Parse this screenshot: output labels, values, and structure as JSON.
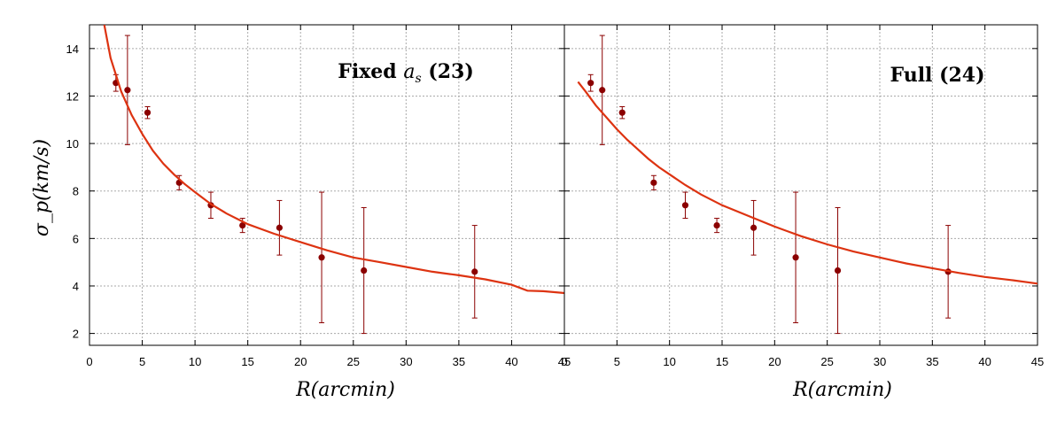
{
  "ylabel": "σ_p(km/s)",
  "xlabel": "R(arcmin)",
  "colors": {
    "model": "#dd3311",
    "points": "#8b0000",
    "grid": "#aaaaaa"
  },
  "chart_data": [
    {
      "type": "scatter",
      "title": "Fixed a_s (23)",
      "title_parts": {
        "prefix": "Fixed ",
        "math": "a",
        "sub": "s",
        "suffix": " (23)"
      },
      "xlabel": "R(arcmin)",
      "ylabel": "σ_p(km/s)",
      "xlim": [
        0,
        45
      ],
      "ylim": [
        1.5,
        15
      ],
      "xticks": [
        0,
        5,
        10,
        15,
        20,
        25,
        30,
        35,
        40,
        45
      ],
      "yticks": [
        2,
        4,
        6,
        8,
        10,
        12,
        14
      ],
      "grid": true,
      "series": [
        {
          "kind": "points",
          "x": [
            2.5,
            3.6,
            5.5,
            8.5,
            11.5,
            14.5,
            18,
            22,
            26,
            36.5
          ],
          "y": [
            12.55,
            12.25,
            11.3,
            8.35,
            7.4,
            6.55,
            6.45,
            5.2,
            4.65,
            4.6
          ],
          "err": [
            0.35,
            2.3,
            0.25,
            0.3,
            0.55,
            0.3,
            1.15,
            2.75,
            2.65,
            1.95
          ]
        },
        {
          "kind": "model",
          "x": [
            1.4,
            2.0,
            3.0,
            4.0,
            5.0,
            6.0,
            7.0,
            8.0,
            9.0,
            10.0,
            11.5,
            13.0,
            15.0,
            17.5,
            20.0,
            22.5,
            25.0,
            27.5,
            30.0,
            32.5,
            35.0,
            37.5,
            40.0,
            41.5,
            43.0,
            45.0
          ],
          "y": [
            15.0,
            13.6,
            12.2,
            11.2,
            10.4,
            9.7,
            9.15,
            8.7,
            8.3,
            7.95,
            7.45,
            7.05,
            6.6,
            6.2,
            5.85,
            5.5,
            5.2,
            5.0,
            4.8,
            4.6,
            4.45,
            4.28,
            4.05,
            3.8,
            3.78,
            3.7
          ]
        }
      ]
    },
    {
      "type": "scatter",
      "title": "Full (24)",
      "title_parts": {
        "prefix": "Full (24)",
        "math": "",
        "sub": "",
        "suffix": ""
      },
      "xlabel": "R(arcmin)",
      "xlim": [
        0,
        45
      ],
      "ylim": [
        1.5,
        15
      ],
      "xticks": [
        0,
        5,
        10,
        15,
        20,
        25,
        30,
        35,
        40,
        45
      ],
      "yticks": [
        2,
        4,
        6,
        8,
        10,
        12,
        14
      ],
      "grid": true,
      "series": [
        {
          "kind": "points",
          "x": [
            2.5,
            3.6,
            5.5,
            8.5,
            11.5,
            14.5,
            18,
            22,
            26,
            36.5
          ],
          "y": [
            12.55,
            12.25,
            11.3,
            8.35,
            7.4,
            6.55,
            6.45,
            5.2,
            4.65,
            4.6
          ],
          "err": [
            0.35,
            2.3,
            0.25,
            0.3,
            0.55,
            0.3,
            1.15,
            2.75,
            2.65,
            1.95
          ]
        },
        {
          "kind": "model",
          "x": [
            1.3,
            2.0,
            3.0,
            4.0,
            5.0,
            6.0,
            7.0,
            8.0,
            9.0,
            10.0,
            11.5,
            13.0,
            15.0,
            17.5,
            20.0,
            22.5,
            25.0,
            27.5,
            30.0,
            32.5,
            35.0,
            37.5,
            40.0,
            42.5,
            45.0
          ],
          "y": [
            12.6,
            12.2,
            11.6,
            11.1,
            10.6,
            10.15,
            9.75,
            9.35,
            9.0,
            8.7,
            8.25,
            7.85,
            7.4,
            6.95,
            6.5,
            6.1,
            5.75,
            5.45,
            5.2,
            4.95,
            4.75,
            4.55,
            4.38,
            4.25,
            4.1
          ]
        }
      ]
    }
  ]
}
